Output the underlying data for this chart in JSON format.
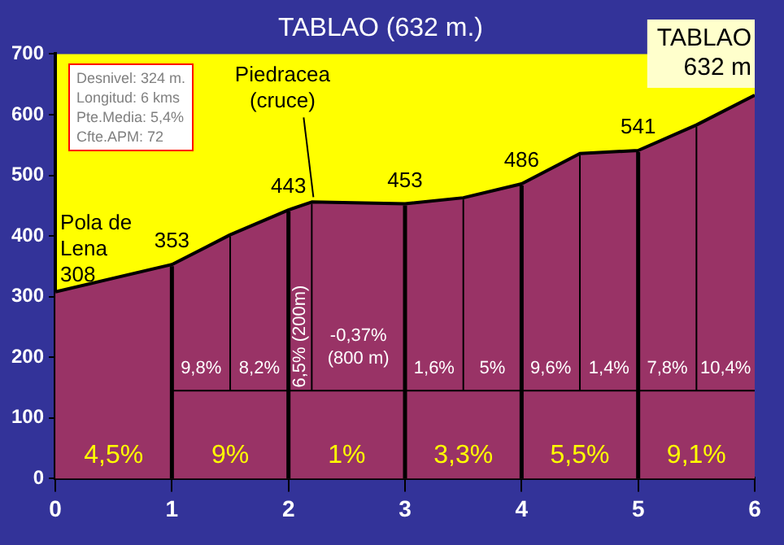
{
  "chart_data": {
    "type": "area",
    "title": "TABLAO (632 m.)",
    "x": [
      0,
      1,
      1.5,
      2,
      2.2,
      3,
      3.5,
      4,
      4.5,
      5,
      5.5,
      6
    ],
    "series": [
      {
        "color": "#993366",
        "values": [
          308,
          353,
          402,
          443,
          456,
          453,
          463,
          486,
          536,
          541,
          583,
          632
        ]
      }
    ],
    "xlim": [
      0,
      6
    ],
    "xticks": [
      0,
      1,
      2,
      3,
      4,
      5,
      6
    ],
    "ylim": [
      0,
      700
    ],
    "yticks": [
      0,
      100,
      200,
      300,
      400,
      500,
      600,
      700
    ],
    "grid": false,
    "legend": false,
    "ref_lines": [
      {
        "axis": "x",
        "value": 1
      },
      {
        "axis": "x",
        "value": 1.5
      },
      {
        "axis": "x",
        "value": 2
      },
      {
        "axis": "x",
        "value": 2.2
      },
      {
        "axis": "x",
        "value": 3
      },
      {
        "axis": "x",
        "value": 3.5
      },
      {
        "axis": "x",
        "value": 4
      },
      {
        "axis": "x",
        "value": 4.5
      },
      {
        "axis": "x",
        "value": 5
      },
      {
        "axis": "x",
        "value": 5.5
      },
      {
        "axis": "y",
        "value": 145
      }
    ],
    "marker": "none",
    "line_style": "solid",
    "annotations": [
      "Desnivel: 324 m.",
      "Longitud: 6 kms",
      "Pte.Media: 5,4%",
      "Cfte.APM: 72",
      {
        "text": "Pola de\nLena\n308",
        "x": 0,
        "y": 308
      },
      {
        "text": "353",
        "x": 1,
        "y": 353
      },
      {
        "text": "443",
        "x": 2,
        "y": 443
      },
      {
        "text": "Piedracea\n(cruce)",
        "x": 2.2,
        "y": 456
      },
      {
        "text": "453",
        "x": 3,
        "y": 453
      },
      {
        "text": "486",
        "x": 4,
        "y": 486
      },
      {
        "text": "541",
        "x": 5,
        "y": 541
      },
      {
        "text": "TABLAO\n632 m",
        "x": 6,
        "y": 632
      },
      "4,5%",
      "9%",
      "1%",
      "3,3%",
      "5,5%",
      "9,1%",
      "9,8%",
      "8,2%",
      "6,5% (200m)",
      "-0,37%\n(800 m)",
      "1,6%",
      "5%",
      "9,6%",
      "1,4%",
      "7,8%",
      "10,4%"
    ]
  }
}
